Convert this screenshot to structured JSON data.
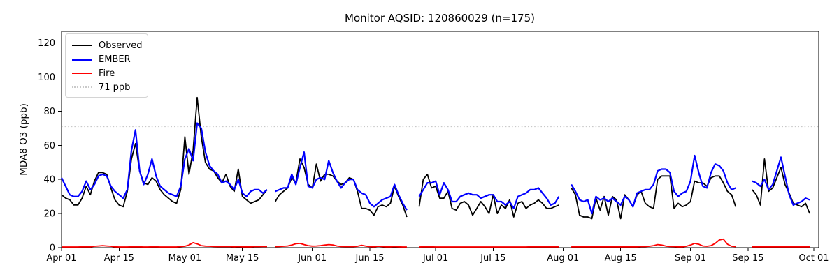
{
  "title": "Monitor AQSID: 120860029 (n=175)",
  "ylabel": "MDA8 O3 (ppb)",
  "legend": {
    "entries": [
      {
        "label": "Observed",
        "color": "#000000",
        "style": "solid"
      },
      {
        "label": "EMBER",
        "color": "#0000ff",
        "style": "solid"
      },
      {
        "label": "Fire",
        "color": "#ff0000",
        "style": "solid"
      },
      {
        "label": "71 ppb",
        "color": "#c9c9c9",
        "style": "dotted"
      }
    ]
  },
  "chart_data": {
    "type": "line",
    "title": "Monitor AQSID: 120860029 (n=175)",
    "xlabel": "",
    "ylabel": "MDA8 O3 (ppb)",
    "x_range": "Apr 01 to Oct 01 (daily)",
    "days": 183,
    "ylim": [
      0,
      126.8
    ],
    "grid": false,
    "legend_position": "upper left",
    "threshold": {
      "value": 71,
      "label": "71 ppb",
      "color": "#c9c9c9",
      "style": "dotted"
    },
    "x_ticks": [
      {
        "pos": 0,
        "label": "Apr 01"
      },
      {
        "pos": 14,
        "label": "Apr 15"
      },
      {
        "pos": 30,
        "label": "May 01"
      },
      {
        "pos": 44,
        "label": "May 15"
      },
      {
        "pos": 61,
        "label": "Jun 01"
      },
      {
        "pos": 75,
        "label": "Jun 15"
      },
      {
        "pos": 91,
        "label": "Jul 01"
      },
      {
        "pos": 105,
        "label": "Jul 15"
      },
      {
        "pos": 122,
        "label": "Aug 01"
      },
      {
        "pos": 136,
        "label": "Aug 15"
      },
      {
        "pos": 153,
        "label": "Sep 01"
      },
      {
        "pos": 167,
        "label": "Sep 15"
      },
      {
        "pos": 183,
        "label": "Oct 01"
      }
    ],
    "y_ticks": [
      0,
      20,
      40,
      60,
      80,
      100,
      120
    ],
    "months": [
      {
        "name": "Apr",
        "days": 30
      },
      {
        "name": "May",
        "days": 31
      },
      {
        "name": "Jun",
        "days": 30
      },
      {
        "name": "Jul",
        "days": 31
      },
      {
        "name": "Aug",
        "days": 31
      },
      {
        "name": "Sep",
        "days": 30
      }
    ],
    "missing_days": [
      "May 22",
      "Jun 25",
      "Jun 26",
      "Aug 01",
      "Aug 02",
      "Sep 13",
      "Sep 14",
      "Sep 15"
    ],
    "series": [
      {
        "name": "Observed",
        "color": "#000000",
        "width": 1.8,
        "values": [
          31,
          29,
          28,
          25,
          25,
          29,
          36,
          31,
          39,
          44,
          44,
          43,
          35,
          28,
          25,
          24,
          33,
          52,
          61,
          45,
          38,
          37,
          41,
          39,
          34,
          31,
          29,
          27,
          26,
          34,
          65,
          43,
          57,
          88,
          65,
          50,
          46,
          45,
          41,
          38,
          43,
          36,
          33,
          46,
          30,
          28,
          26,
          27,
          28,
          31,
          34,
          null,
          27,
          31,
          33,
          35,
          41,
          38,
          52,
          47,
          37,
          35,
          49,
          39,
          43,
          43,
          42,
          39,
          37,
          38,
          41,
          40,
          33,
          23,
          23,
          22,
          19,
          24,
          25,
          24,
          26,
          36,
          30,
          25,
          18,
          null,
          null,
          24,
          40,
          43,
          35,
          36,
          29,
          29,
          33,
          23,
          22,
          26,
          27,
          25,
          19,
          23,
          27,
          24,
          20,
          31,
          20,
          25,
          23,
          28,
          18,
          26,
          27,
          23,
          25,
          26,
          28,
          26,
          23,
          23,
          24,
          25,
          null,
          null,
          35,
          31,
          19,
          18,
          18,
          17,
          29,
          22,
          30,
          19,
          30,
          28,
          17,
          31,
          28,
          24,
          31,
          33,
          26,
          24,
          23,
          40,
          42,
          42,
          42,
          23,
          26,
          24,
          25,
          27,
          39,
          38,
          38,
          36,
          41,
          42,
          42,
          38,
          33,
          31,
          24,
          null,
          null,
          null,
          34,
          31,
          25,
          52,
          33,
          35,
          41,
          47,
          37,
          32,
          26,
          25,
          24,
          26,
          20
        ]
      },
      {
        "name": "EMBER",
        "color": "#0000ff",
        "width": 2.2,
        "values": [
          41,
          36,
          31,
          30,
          30,
          33,
          39,
          34,
          37,
          42,
          43,
          42,
          36,
          33,
          31,
          29,
          34,
          57,
          69,
          45,
          37,
          43,
          52,
          42,
          36,
          34,
          32,
          31,
          30,
          36,
          52,
          58,
          51,
          73,
          70,
          56,
          48,
          45,
          43,
          38,
          39,
          37,
          34,
          40,
          32,
          30,
          33,
          34,
          34,
          32,
          34,
          null,
          33,
          34,
          35,
          35,
          43,
          37,
          47,
          56,
          36,
          35,
          40,
          41,
          40,
          51,
          44,
          39,
          35,
          38,
          40,
          40,
          34,
          32,
          31,
          26,
          24,
          26,
          28,
          29,
          30,
          37,
          31,
          26,
          22,
          null,
          null,
          30,
          34,
          38,
          38,
          39,
          31,
          38,
          34,
          27,
          27,
          30,
          31,
          32,
          31,
          31,
          29,
          30,
          31,
          31,
          27,
          27,
          25,
          27,
          23,
          30,
          31,
          32,
          34,
          34,
          35,
          32,
          29,
          25,
          26,
          30,
          null,
          null,
          37,
          33,
          28,
          27,
          28,
          20,
          30,
          28,
          29,
          27,
          29,
          27,
          25,
          30,
          28,
          24,
          32,
          33,
          34,
          34,
          37,
          45,
          46,
          46,
          44,
          33,
          30,
          32,
          33,
          39,
          54,
          44,
          36,
          35,
          44,
          49,
          48,
          45,
          38,
          34,
          35,
          null,
          null,
          null,
          39,
          38,
          36,
          40,
          34,
          37,
          45,
          53,
          42,
          31,
          25,
          26,
          27,
          29,
          28
        ]
      },
      {
        "name": "Fire",
        "color": "#ff0000",
        "width": 1.8,
        "values": [
          0.4,
          0.4,
          0.4,
          0.4,
          0.4,
          0.5,
          0.5,
          0.5,
          0.8,
          1.0,
          1.2,
          1.0,
          0.8,
          0.5,
          0.4,
          0.4,
          0.4,
          0.5,
          0.5,
          0.5,
          0.4,
          0.4,
          0.5,
          0.5,
          0.4,
          0.4,
          0.4,
          0.4,
          0.4,
          0.6,
          0.8,
          1.5,
          2.9,
          2.2,
          1.2,
          0.9,
          0.8,
          0.7,
          0.6,
          0.6,
          0.7,
          0.6,
          0.5,
          0.6,
          0.5,
          0.5,
          0.5,
          0.6,
          0.6,
          0.7,
          0.7,
          null,
          0.6,
          0.7,
          0.8,
          1.0,
          1.5,
          2.3,
          2.5,
          1.8,
          1.2,
          0.9,
          1.0,
          1.2,
          1.5,
          1.8,
          1.6,
          1.0,
          0.7,
          0.6,
          0.6,
          0.6,
          0.8,
          1.4,
          0.9,
          0.6,
          0.5,
          0.8,
          0.6,
          0.5,
          0.5,
          0.6,
          0.5,
          0.4,
          0.4,
          null,
          null,
          0.4,
          0.5,
          0.5,
          0.5,
          0.4,
          0.4,
          0.4,
          0.4,
          0.4,
          0.4,
          0.4,
          0.4,
          0.4,
          0.4,
          0.4,
          0.4,
          0.4,
          0.4,
          0.4,
          0.4,
          0.4,
          0.4,
          0.4,
          0.4,
          0.4,
          0.4,
          0.4,
          0.5,
          0.5,
          0.5,
          0.5,
          0.5,
          0.5,
          0.5,
          0.5,
          null,
          null,
          0.5,
          0.5,
          0.5,
          0.5,
          0.5,
          0.5,
          0.5,
          0.5,
          0.5,
          0.5,
          0.5,
          0.5,
          0.5,
          0.5,
          0.5,
          0.5,
          0.5,
          0.6,
          0.6,
          0.8,
          1.2,
          1.8,
          1.5,
          0.9,
          0.7,
          0.6,
          0.5,
          0.5,
          0.8,
          1.5,
          2.5,
          2.0,
          1.0,
          0.8,
          1.2,
          2.5,
          4.5,
          5.0,
          2.0,
          0.8,
          0.6,
          null,
          null,
          null,
          0.5,
          0.5,
          0.5,
          0.5,
          0.5,
          0.5,
          0.5,
          0.5,
          0.5,
          0.5,
          0.5,
          0.5,
          0.5,
          0.5,
          0.5
        ]
      }
    ]
  }
}
